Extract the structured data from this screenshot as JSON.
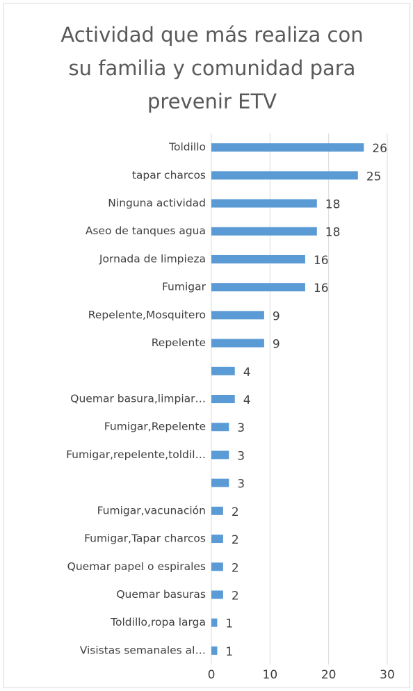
{
  "chart_data": {
    "type": "bar",
    "orientation": "horizontal",
    "title": "Actividad que más realiza con su familia y comunidad para prevenir ETV",
    "categories": [
      "Toldillo",
      "tapar charcos",
      "Ninguna actividad",
      "Aseo de tanques agua",
      "Jornada de limpieza",
      "Fumigar",
      "Repelente,Mosquitero",
      "Repelente",
      null,
      "Quemar basura,limpiar…",
      "Fumigar,Repelente",
      "Fumigar,repelente,toldil…",
      null,
      "Fumigar,vacunación",
      "Fumigar,Tapar charcos",
      "Quemar papel o espirales",
      "Quemar basuras",
      "Toldillo,ropa larga",
      "Visistas semanales al…"
    ],
    "values": [
      26,
      25,
      18,
      18,
      16,
      16,
      9,
      9,
      4,
      4,
      3,
      3,
      3,
      2,
      2,
      2,
      2,
      1,
      1
    ],
    "color": "#5b9bd5",
    "xlim": [
      0,
      30
    ],
    "xticks": [
      0,
      10,
      20,
      30
    ],
    "grid": true
  }
}
